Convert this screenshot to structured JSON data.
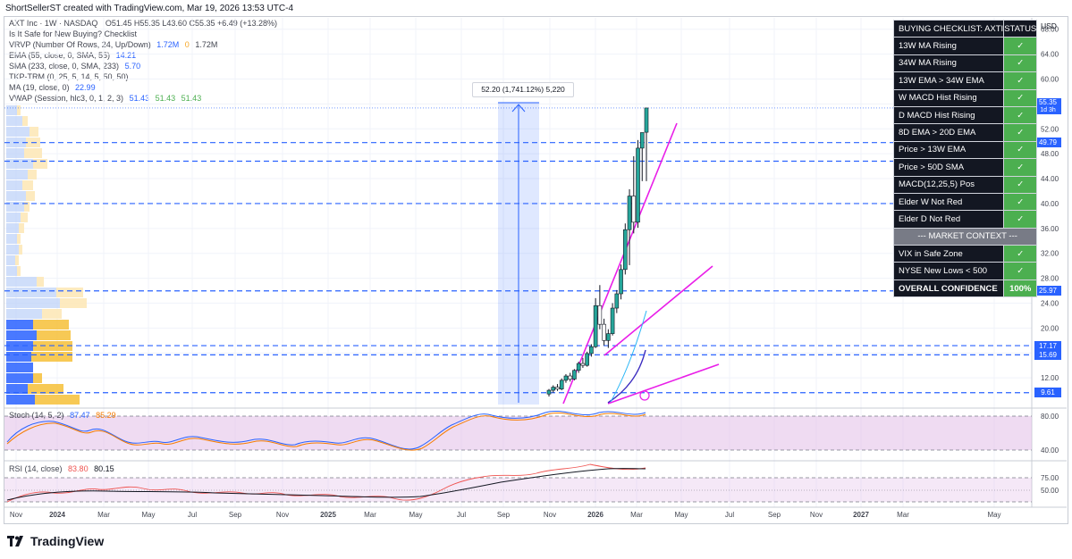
{
  "header_note": "ShortSellerST created with TradingView.com, Mar 19, 2026 13:53 UTC-4",
  "legend": {
    "symbol_line": "AXT Inc · 1W · NASDAQ",
    "ohlc": "O51.45 H55.35 L43.60 C55.35 +6.49 (+13.28%)",
    "script_title": "Is It Safe for New Buying? Checklist",
    "vrvp": "VRVP (Number Of Rows, 24, Up/Down)",
    "vrvp_values": [
      "1.72M",
      "0",
      "1.72M"
    ],
    "ema": "EMA (55, close, 0, SMA, 55)",
    "ema_value": "14.21",
    "sma": "SMA (233, close, 0, SMA, 233)",
    "sma_value": "5.70",
    "tkp": "TKP-TRM  (0, 25, 5, 14, 5, 50, 50)",
    "ma": "MA (19, close, 0)",
    "ma_value": "22.99",
    "vwap": "VWAP (Session, hlc3, 0, 1, 2, 3)",
    "vwap_values": [
      "51.43",
      "51.43",
      "51.43"
    ]
  },
  "checklist": {
    "header": "BUYING CHECKLIST: AXTI",
    "status_header": "STATUS",
    "rows": [
      {
        "label": "13W MA Rising",
        "status": "✓"
      },
      {
        "label": "34W MA Rising",
        "status": "✓"
      },
      {
        "label": "13W EMA > 34W EMA",
        "status": "✓"
      },
      {
        "label": "W MACD Hist Rising",
        "status": "✓"
      },
      {
        "label": "D MACD Hist Rising",
        "status": "✓"
      },
      {
        "label": "8D EMA > 20D EMA",
        "status": "✓"
      },
      {
        "label": "Price > 13W EMA",
        "status": "✓"
      },
      {
        "label": "Price > 50D SMA",
        "status": "✓"
      },
      {
        "label": "MACD(12,25,5) Pos",
        "status": "✓"
      },
      {
        "label": "Elder W Not Red",
        "status": "✓"
      },
      {
        "label": "Elder D Not Red",
        "status": "✓"
      }
    ],
    "market_context": "--- MARKET CONTEXT ---",
    "context_rows": [
      {
        "label": "VIX in Safe Zone",
        "status": "✓"
      },
      {
        "label": "NYSE New Lows < 500",
        "status": "✓"
      }
    ],
    "confidence_label": "OVERALL CONFIDENCE",
    "confidence_value": "100%"
  },
  "measure_label": "52.20 (1,741.12%) 5,220",
  "stoch": {
    "label": "Stoch (14, 5, 2)",
    "k": "87.47",
    "d": "85.29"
  },
  "rsi": {
    "label": "RSI (14, close)",
    "value": "83.80",
    "ma": "80.15"
  },
  "branding": "TradingView",
  "colors": {
    "up": "#26a69a",
    "down": "#ef5350",
    "level_line": "#2962ff",
    "trendline": "#e91ee8",
    "checklist_bg": "#131722",
    "status_green": "#4caf50"
  },
  "chart_data": [
    {
      "type": "candlestick",
      "currency": "USD",
      "y_ticks": [
        12.0,
        16.0,
        20.0,
        24.0,
        28.0,
        32.0,
        36.0,
        40.0,
        44.0,
        48.0,
        52.0,
        56.0,
        60.0,
        64.0,
        68.0
      ],
      "ylim": [
        8,
        70
      ],
      "x_ticks": [
        "Nov",
        "2024",
        "Mar",
        "May",
        "Jul",
        "Sep",
        "Nov",
        "2025",
        "Mar",
        "May",
        "Jul",
        "Sep",
        "Nov",
        "2026",
        "Mar",
        "May",
        "Jul",
        "Sep",
        "Nov",
        "2027",
        "Mar",
        "May"
      ],
      "price_levels": [
        {
          "label": "49.79",
          "value": 49.79
        },
        {
          "label": "25.97",
          "value": 25.97
        },
        {
          "label": "17.17",
          "value": 17.17
        },
        {
          "label": "15.69",
          "value": 15.69
        },
        {
          "label": "9.61",
          "value": 9.61
        }
      ],
      "unlabeled_levels": [
        46.8,
        40.0
      ],
      "last_price": {
        "label": "55.35",
        "sub": "1d 3h",
        "value": 55.35
      },
      "candles_weekly_approx": [
        {
          "o": 9.4,
          "h": 10.2,
          "l": 9.0,
          "c": 10.0
        },
        {
          "o": 10.0,
          "h": 10.8,
          "l": 9.6,
          "c": 10.5
        },
        {
          "o": 10.5,
          "h": 11.0,
          "l": 9.9,
          "c": 10.2
        },
        {
          "o": 10.2,
          "h": 11.9,
          "l": 10.0,
          "c": 11.6
        },
        {
          "o": 11.6,
          "h": 12.6,
          "l": 11.2,
          "c": 12.3
        },
        {
          "o": 12.3,
          "h": 12.8,
          "l": 11.4,
          "c": 11.8
        },
        {
          "o": 11.8,
          "h": 13.4,
          "l": 11.6,
          "c": 13.2
        },
        {
          "o": 13.2,
          "h": 14.6,
          "l": 12.8,
          "c": 14.3
        },
        {
          "o": 14.3,
          "h": 15.2,
          "l": 13.6,
          "c": 14.0
        },
        {
          "o": 14.0,
          "h": 16.2,
          "l": 13.8,
          "c": 15.9
        },
        {
          "o": 15.9,
          "h": 17.4,
          "l": 15.4,
          "c": 17.0
        },
        {
          "o": 17.0,
          "h": 24.8,
          "l": 16.8,
          "c": 23.6
        },
        {
          "o": 23.6,
          "h": 26.9,
          "l": 19.8,
          "c": 20.6
        },
        {
          "o": 20.6,
          "h": 21.5,
          "l": 17.2,
          "c": 18.0
        },
        {
          "o": 18.0,
          "h": 19.8,
          "l": 16.8,
          "c": 19.1
        },
        {
          "o": 19.1,
          "h": 24.0,
          "l": 18.8,
          "c": 23.2
        },
        {
          "o": 23.2,
          "h": 26.1,
          "l": 22.4,
          "c": 25.5
        },
        {
          "o": 25.5,
          "h": 30.2,
          "l": 24.6,
          "c": 29.4
        },
        {
          "o": 29.4,
          "h": 36.8,
          "l": 28.6,
          "c": 35.8
        },
        {
          "o": 35.8,
          "h": 42.3,
          "l": 30.1,
          "c": 41.2
        },
        {
          "o": 41.2,
          "h": 47.6,
          "l": 35.2,
          "c": 37.0
        },
        {
          "o": 37.0,
          "h": 50.2,
          "l": 36.1,
          "c": 48.9
        },
        {
          "o": 48.9,
          "h": 51.4,
          "l": 43.6,
          "c": 51.4
        },
        {
          "o": 51.45,
          "h": 55.35,
          "l": 43.6,
          "c": 55.35
        }
      ]
    },
    {
      "type": "line",
      "title": "Stoch (14, 5, 2)",
      "y_ticks": [
        40.0,
        80.0
      ],
      "series": [
        {
          "name": "%K"
        },
        {
          "name": "%D"
        }
      ]
    },
    {
      "type": "line",
      "title": "RSI (14, close)",
      "y_ticks": [
        50.0,
        75.0
      ],
      "series": [
        {
          "name": "RSI"
        },
        {
          "name": "RSI-based MA"
        }
      ]
    }
  ]
}
